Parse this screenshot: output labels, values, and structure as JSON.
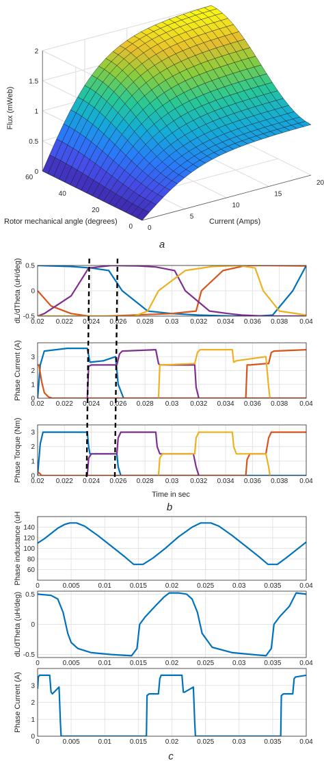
{
  "chart_data": [
    {
      "type": "surface",
      "zlabel": "Flux (mWeb)",
      "ylabel": "Rotor mechanical angle (degrees)",
      "xlabel": "Current (Amps)",
      "zticks": [
        "0",
        "0.5",
        "1",
        "1.5",
        "2"
      ],
      "angle_ticks": [
        "0",
        "20",
        "40",
        "60"
      ],
      "current_ticks": [
        "0",
        "5",
        "10",
        "15",
        "20"
      ],
      "angle_range": [
        0,
        60
      ],
      "current_range": [
        0,
        20
      ],
      "flux_range": [
        0,
        2
      ],
      "colormap": "parula",
      "peak_flux": 2.0
    },
    {
      "type": "line",
      "ylabel": "dL/dTheta (uH/deg)",
      "ylim": [
        -0.5,
        0.5
      ],
      "yticks": [
        "0.5",
        "0",
        "-0.5"
      ],
      "xlim": [
        0.02,
        0.04
      ],
      "xticks": [
        "0.02",
        "0.022",
        "0.024",
        "0.026",
        "0.028",
        "0.03",
        "0.032",
        "0.034",
        "0.036",
        "0.038",
        "0.04"
      ],
      "series": [
        {
          "color": "#0072BD",
          "x": [
            0.02,
            0.0225,
            0.024,
            0.0253,
            0.0263,
            0.0282,
            0.03,
            0.032,
            0.0345,
            0.0362,
            0.0375,
            0.039,
            0.04
          ],
          "y": [
            0.5,
            0.48,
            0.45,
            0.4,
            0.0,
            -0.4,
            -0.45,
            -0.48,
            -0.5,
            -0.5,
            -0.48,
            0.0,
            0.5
          ]
        },
        {
          "color": "#D95319",
          "x": [
            0.02,
            0.021,
            0.0225,
            0.0238,
            0.025,
            0.026,
            0.028,
            0.03,
            0.0318,
            0.0322,
            0.0338,
            0.0355,
            0.037,
            0.04
          ],
          "y": [
            0.0,
            -0.3,
            -0.45,
            -0.5,
            -0.5,
            -0.49,
            -0.47,
            -0.45,
            -0.4,
            0.0,
            0.4,
            0.5,
            0.5,
            0.49
          ]
        },
        {
          "color": "#7E2F8E",
          "x": [
            0.02,
            0.0205,
            0.0225,
            0.0238,
            0.0255,
            0.0275,
            0.0288,
            0.0302,
            0.031,
            0.0328,
            0.0342,
            0.0352,
            0.037,
            0.039,
            0.04
          ],
          "y": [
            -0.5,
            -0.45,
            -0.1,
            0.45,
            0.5,
            0.49,
            0.47,
            0.4,
            0.0,
            -0.4,
            -0.45,
            -0.48,
            -0.5,
            -0.5,
            -0.5
          ]
        },
        {
          "color": "#EDB120",
          "x": [
            0.02,
            0.0245,
            0.0258,
            0.0272,
            0.0282,
            0.029,
            0.031,
            0.033,
            0.035,
            0.0362,
            0.0368,
            0.038,
            0.04
          ],
          "y": [
            -0.5,
            -0.5,
            -0.5,
            -0.5,
            -0.4,
            0.0,
            0.4,
            0.48,
            0.5,
            0.45,
            0.0,
            -0.4,
            -0.48
          ]
        }
      ],
      "markers_x": [
        0.0238,
        0.0259
      ]
    },
    {
      "type": "line",
      "ylabel": "Phase Current (A)",
      "ylim": [
        0,
        4
      ],
      "yticks": [
        "0",
        "1",
        "2",
        "3"
      ],
      "xlim": [
        0.02,
        0.04
      ],
      "xticks": [
        "0.02",
        "0.022",
        "0.024",
        "0.026",
        "0.028",
        "0.03",
        "0.032",
        "0.034",
        "0.036",
        "0.038",
        "0.04"
      ],
      "series": [
        {
          "color": "#0072BD",
          "x": [
            0.02,
            0.0202,
            0.0205,
            0.0222,
            0.0222,
            0.0237,
            0.0239,
            0.0249,
            0.0258,
            0.026,
            0.0264,
            0.04
          ],
          "y": [
            0,
            2.4,
            3.4,
            3.6,
            3.6,
            3.6,
            2.6,
            2.7,
            3.0,
            1.0,
            0,
            0
          ]
        },
        {
          "color": "#D95319",
          "x": [
            0.02,
            0.0201,
            0.0203,
            0.0205,
            0.0208,
            0.0211,
            0.04
          ],
          "y": [
            2.4,
            2.4,
            1.2,
            0.4,
            0.1,
            0,
            0
          ]
        },
        {
          "color": "#D95319",
          "x": [
            0.0355,
            0.0356,
            0.0358,
            0.037,
            0.0372,
            0.0374,
            0.0376,
            0.04
          ],
          "y": [
            0,
            2.4,
            2.4,
            2.5,
            2.5,
            3.3,
            3.4,
            3.5
          ]
        },
        {
          "color": "#7E2F8E",
          "x": [
            0.0237,
            0.0238,
            0.024,
            0.0259,
            0.0261,
            0.0263,
            0.0288,
            0.029,
            0.0291,
            0.0317,
            0.0318,
            0.032
          ],
          "y": [
            0,
            2.3,
            2.4,
            2.4,
            3.2,
            3.4,
            3.5,
            2.5,
            2.4,
            2.4,
            0.8,
            0
          ]
        },
        {
          "color": "#EDB120",
          "x": [
            0.029,
            0.0291,
            0.0293,
            0.0317,
            0.0319,
            0.0321,
            0.0345,
            0.0346,
            0.0348,
            0.037,
            0.0372,
            0.0373
          ],
          "y": [
            0,
            2.4,
            2.4,
            2.5,
            3.3,
            3.5,
            3.5,
            2.6,
            2.7,
            3.0,
            0.8,
            0
          ]
        }
      ],
      "markers_x": [
        0.0238,
        0.0259
      ]
    },
    {
      "type": "line",
      "ylabel": "Phase Torque (Nm)",
      "xlabel": "Time in sec",
      "ylim": [
        0,
        3.5
      ],
      "yticks": [
        "0",
        "1",
        "2",
        "3"
      ],
      "xlim": [
        0.02,
        0.04
      ],
      "xticks": [
        "0.02",
        "0.022",
        "0.024",
        "0.026",
        "0.028",
        "0.03",
        "0.032",
        "0.034",
        "0.036",
        "0.038",
        "0.04"
      ],
      "series": [
        {
          "color": "#0072BD",
          "x": [
            0.02,
            0.0202,
            0.0204,
            0.0222,
            0.0237,
            0.0238,
            0.0239,
            0.0259,
            0.026,
            0.0262,
            0.04
          ],
          "y": [
            0,
            2.2,
            3.0,
            3.0,
            3.0,
            2.0,
            1.5,
            1.5,
            0.6,
            0,
            0
          ]
        },
        {
          "color": "#D95319",
          "x": [
            0.02,
            0.0201,
            0.0203,
            0.0355,
            0.0356,
            0.0358,
            0.037,
            0.0372,
            0.0374,
            0.04
          ],
          "y": [
            0.2,
            0.2,
            0,
            0,
            1.1,
            1.5,
            1.5,
            2.6,
            3.0,
            3.0
          ]
        },
        {
          "color": "#7E2F8E",
          "x": [
            0.0237,
            0.0238,
            0.024,
            0.0259,
            0.026,
            0.0262,
            0.0288,
            0.0289,
            0.0291,
            0.0316,
            0.0318,
            0.032
          ],
          "y": [
            0,
            1.2,
            1.5,
            1.5,
            2.6,
            3.0,
            3.0,
            2.0,
            1.5,
            1.5,
            0.6,
            0
          ]
        },
        {
          "color": "#EDB120",
          "x": [
            0.029,
            0.0291,
            0.0293,
            0.0317,
            0.0318,
            0.032,
            0.0345,
            0.0346,
            0.0348,
            0.037,
            0.0372,
            0.0373
          ],
          "y": [
            0,
            1.2,
            1.5,
            1.5,
            2.6,
            3.0,
            3.0,
            2.0,
            1.5,
            1.5,
            0.6,
            0
          ]
        }
      ],
      "markers_x": [
        0.0238,
        0.0259
      ]
    },
    {
      "type": "line",
      "ylabel": "Phase inductance (uH",
      "ylim": [
        40,
        160
      ],
      "yticks": [
        "60",
        "80",
        "100",
        "120",
        "140"
      ],
      "xlim": [
        0,
        0.04
      ],
      "xticks": [
        "0",
        "0.005",
        "0.01",
        "0.015",
        "0.02",
        "0.025",
        "0.03",
        "0.035",
        "0.04"
      ],
      "series": [
        {
          "color": "#0072BD",
          "x": [
            0,
            0.001,
            0.002,
            0.003,
            0.004,
            0.0048,
            0.0058,
            0.007,
            0.009,
            0.011,
            0.013,
            0.0143,
            0.0157,
            0.0172,
            0.019,
            0.021,
            0.023,
            0.0243,
            0.0258,
            0.027,
            0.029,
            0.031,
            0.033,
            0.0343,
            0.0357,
            0.037,
            0.039,
            0.04
          ],
          "y": [
            110,
            118,
            128,
            138,
            145,
            148,
            148,
            142,
            124,
            104,
            84,
            70,
            70,
            82,
            100,
            122,
            140,
            148,
            148,
            142,
            124,
            104,
            84,
            70,
            70,
            82,
            102,
            112
          ]
        }
      ]
    },
    {
      "type": "line",
      "ylabel": "dL/dTheta (uH/deg)",
      "ylim": [
        -0.55,
        0.55
      ],
      "yticks": [
        "0.5",
        "0",
        "-0.5"
      ],
      "xlim": [
        0,
        0.04
      ],
      "xticks": [
        "0",
        "0.005",
        "0.01",
        "0.015",
        "0.02",
        "0.025",
        "0.03",
        "0.035",
        "0.04"
      ],
      "series": [
        {
          "color": "#0072BD",
          "x": [
            0,
            0.002,
            0.003,
            0.0038,
            0.0045,
            0.005,
            0.006,
            0.008,
            0.011,
            0.014,
            0.0148,
            0.0152,
            0.016,
            0.0175,
            0.0188,
            0.0196,
            0.021,
            0.0222,
            0.023,
            0.0238,
            0.0245,
            0.026,
            0.029,
            0.032,
            0.034,
            0.0348,
            0.0352,
            0.036,
            0.0375,
            0.0385,
            0.04
          ],
          "y": [
            0.5,
            0.48,
            0.42,
            0.2,
            -0.15,
            -0.3,
            -0.4,
            -0.47,
            -0.5,
            -0.52,
            -0.4,
            0.0,
            0.12,
            0.3,
            0.45,
            0.52,
            0.52,
            0.5,
            0.42,
            0.2,
            -0.15,
            -0.38,
            -0.47,
            -0.5,
            -0.52,
            -0.4,
            0.0,
            0.12,
            0.3,
            0.52,
            0.5
          ]
        }
      ]
    },
    {
      "type": "line",
      "ylabel": "Phase Current (A)",
      "ylim": [
        0,
        4
      ],
      "yticks": [
        "0",
        "1",
        "2",
        "3"
      ],
      "xlim": [
        0,
        0.04
      ],
      "xticks": [
        "0",
        "0.005",
        "0.01",
        "0.015",
        "0.02",
        "0.025",
        "0.03",
        "0.035",
        "0.04"
      ],
      "series": [
        {
          "color": "#0072BD",
          "x": [
            0,
            0.0001,
            0.0003,
            0.0018,
            0.002,
            0.0022,
            0.0032,
            0.0034,
            0.0035,
            0.0162,
            0.0163,
            0.0166,
            0.018,
            0.0182,
            0.0184,
            0.0215,
            0.0217,
            0.0219,
            0.0232,
            0.0234,
            0.0235,
            0.0362,
            0.0363,
            0.0366,
            0.038,
            0.0382,
            0.0384,
            0.04
          ],
          "y": [
            2.8,
            3.5,
            3.6,
            3.6,
            2.6,
            2.5,
            2.9,
            0.8,
            0,
            0,
            2.4,
            2.5,
            2.5,
            3.4,
            3.6,
            3.6,
            2.6,
            2.6,
            2.9,
            0.8,
            0,
            0,
            2.4,
            2.5,
            2.5,
            3.4,
            3.5,
            3.6
          ]
        }
      ]
    }
  ],
  "captions": {
    "a": "a",
    "b": "b",
    "c": "c"
  }
}
